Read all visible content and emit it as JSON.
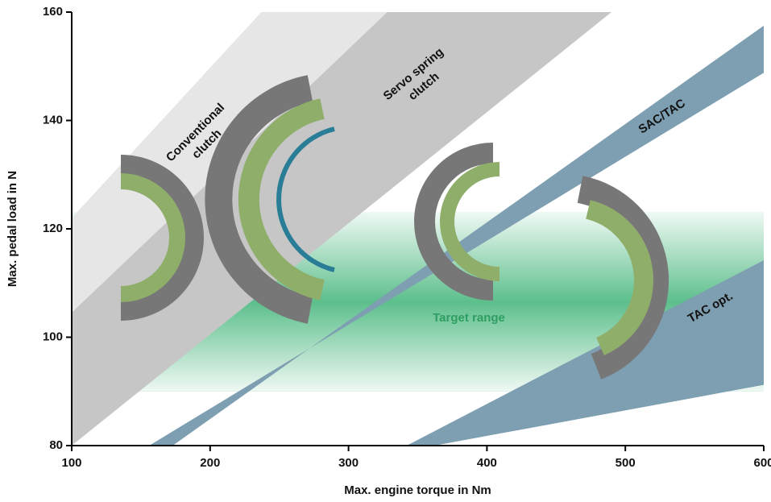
{
  "chart_data": {
    "type": "band",
    "xlabel": "Max. engine torque in Nm",
    "ylabel": "Max. pedal load in N",
    "xlim": [
      100,
      600
    ],
    "ylim": [
      80,
      160
    ],
    "xticks": [
      100,
      200,
      300,
      400,
      500,
      600
    ],
    "yticks": [
      80,
      100,
      120,
      140,
      160
    ],
    "series": [
      {
        "name": "Target range",
        "color": "#5dbf8c",
        "x": [
          100,
          600,
          600,
          100
        ],
        "y": [
          90,
          90,
          123,
          123
        ]
      },
      {
        "name": "Conventional clutch",
        "color": "#e6e6e6",
        "x": [
          100,
          237,
          328,
          100
        ],
        "y": [
          122,
          160,
          160,
          104.5
        ]
      },
      {
        "name": "Servo spring clutch",
        "color": "#c6c6c6",
        "x": [
          100,
          328,
          490,
          100
        ],
        "y": [
          104.5,
          160,
          160,
          80
        ]
      },
      {
        "name": "SAC/TAC",
        "color": "#7e9fb2",
        "x": [
          156,
          600,
          600,
          173
        ],
        "y": [
          80,
          148.8,
          157.5,
          80
        ]
      },
      {
        "name": "TAC opt.",
        "color": "#7e9fb2",
        "x": [
          362,
          600,
          600,
          342
        ],
        "y": [
          80,
          91.2,
          114.2,
          80
        ]
      }
    ]
  }
}
